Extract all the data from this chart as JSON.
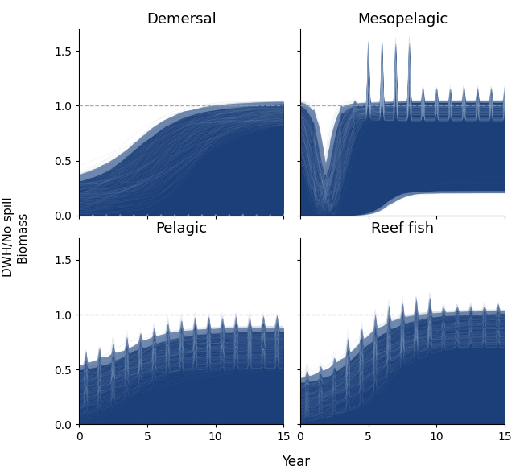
{
  "panels": [
    {
      "title": "Demersal",
      "row": 0,
      "col": 0,
      "type": "demersal"
    },
    {
      "title": "Mesopelagic",
      "row": 0,
      "col": 1,
      "type": "mesopelagic"
    },
    {
      "title": "Pelagic",
      "row": 1,
      "col": 0,
      "type": "pelagic"
    },
    {
      "title": "Reef fish",
      "row": 1,
      "col": 1,
      "type": "reef_fish"
    }
  ],
  "xlim": [
    0,
    15
  ],
  "ylim": [
    0.0,
    1.7
  ],
  "yticks": [
    0.0,
    0.5,
    1.0,
    1.5
  ],
  "xticks": [
    0,
    5,
    10,
    15
  ],
  "fill_color": "#1b3f78",
  "spike_color": "#a0b8d8",
  "dashed_line_y": 1.0,
  "dashed_color": "#999999",
  "xlabel": "Year",
  "ylabel": "DWH/No spill\nBiomass",
  "background_color": "#ffffff",
  "n_sims": 600
}
